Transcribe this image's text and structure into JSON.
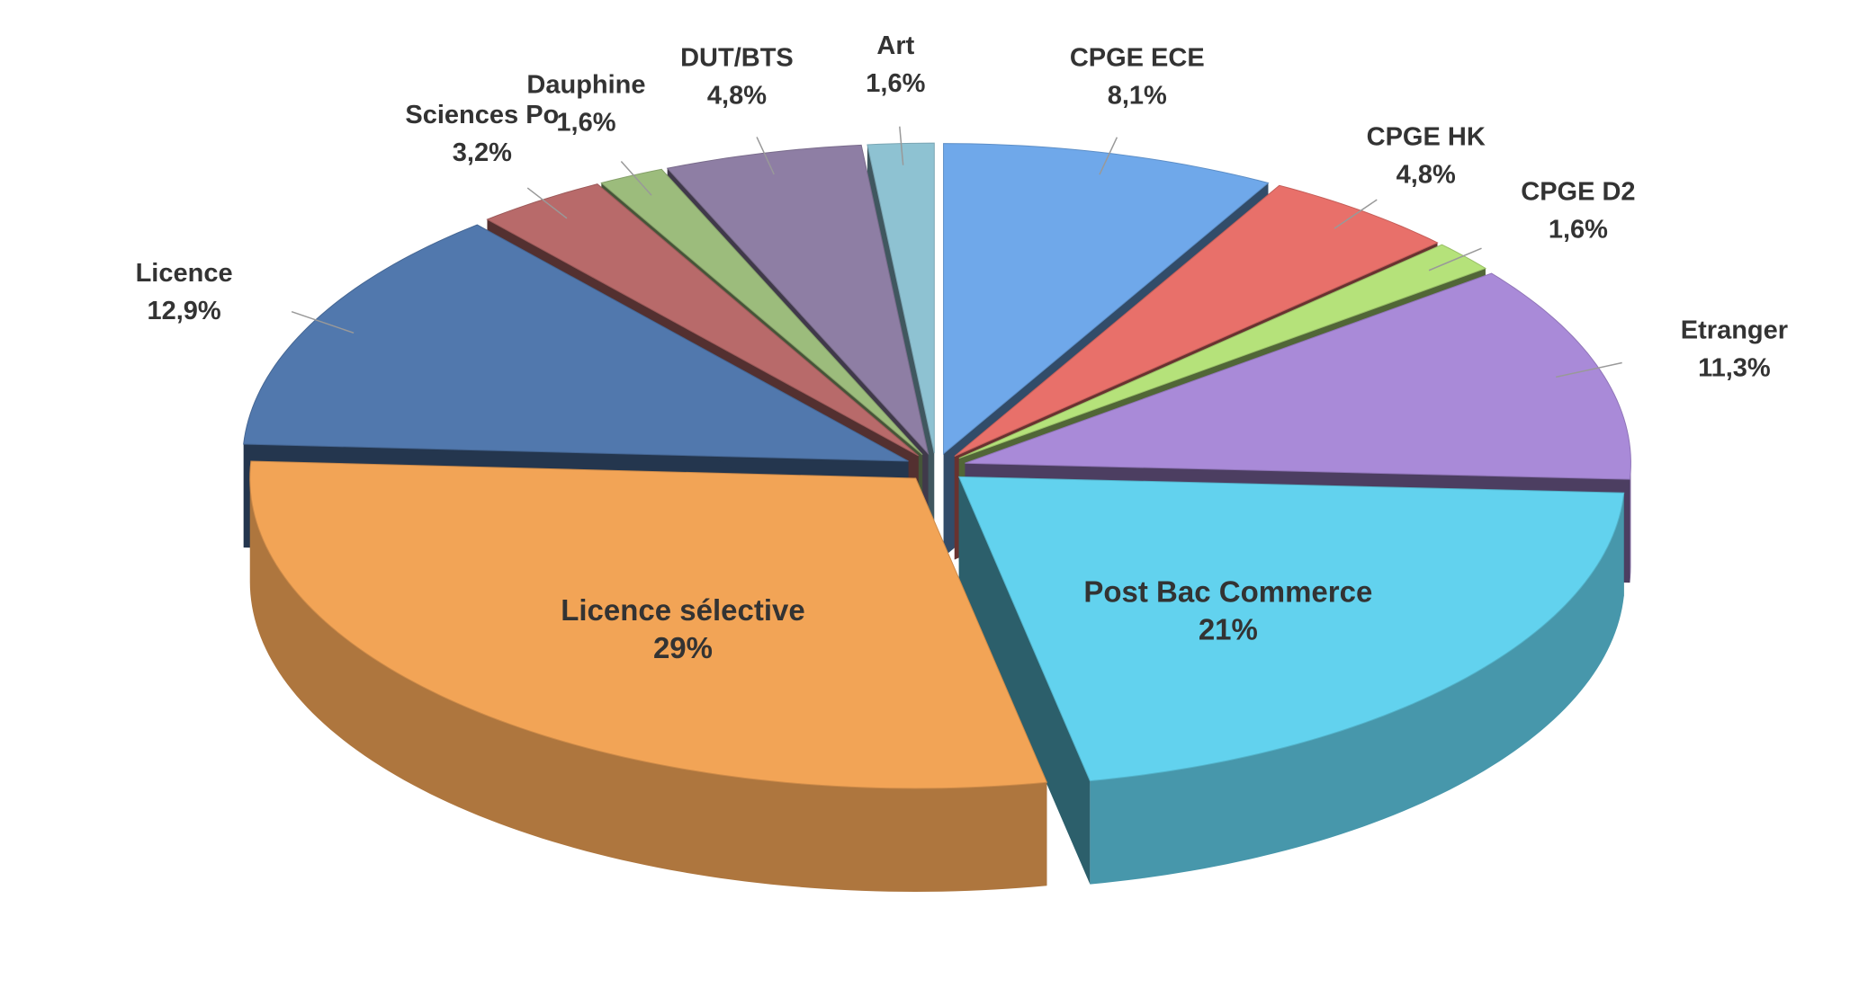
{
  "chart_data": {
    "type": "pie",
    "categories": [
      "CPGE ECE",
      "CPGE HK",
      "CPGE D2",
      "Etranger",
      "Post Bac Commerce",
      "Licence sélective",
      "Licence",
      "Sciences Po",
      "Dauphine",
      "DUT/BTS",
      "Art"
    ],
    "values": [
      8.1,
      4.8,
      1.6,
      11.3,
      21,
      29,
      12.9,
      3.2,
      1.6,
      4.8,
      1.6
    ],
    "value_labels": [
      "8,1%",
      "4,8%",
      "1,6%",
      "11,3%",
      "21%",
      "29%",
      "12,9%",
      "3,2%",
      "1,6%",
      "4,8%",
      "1,6%"
    ],
    "colors": [
      "#6fa8ea",
      "#e8706a",
      "#b5e27a",
      "#a98ad8",
      "#62d2ee",
      "#f2a456",
      "#5178ad",
      "#b86a6a",
      "#9cbc7c",
      "#8e7ea4",
      "#8ec2d2"
    ]
  }
}
